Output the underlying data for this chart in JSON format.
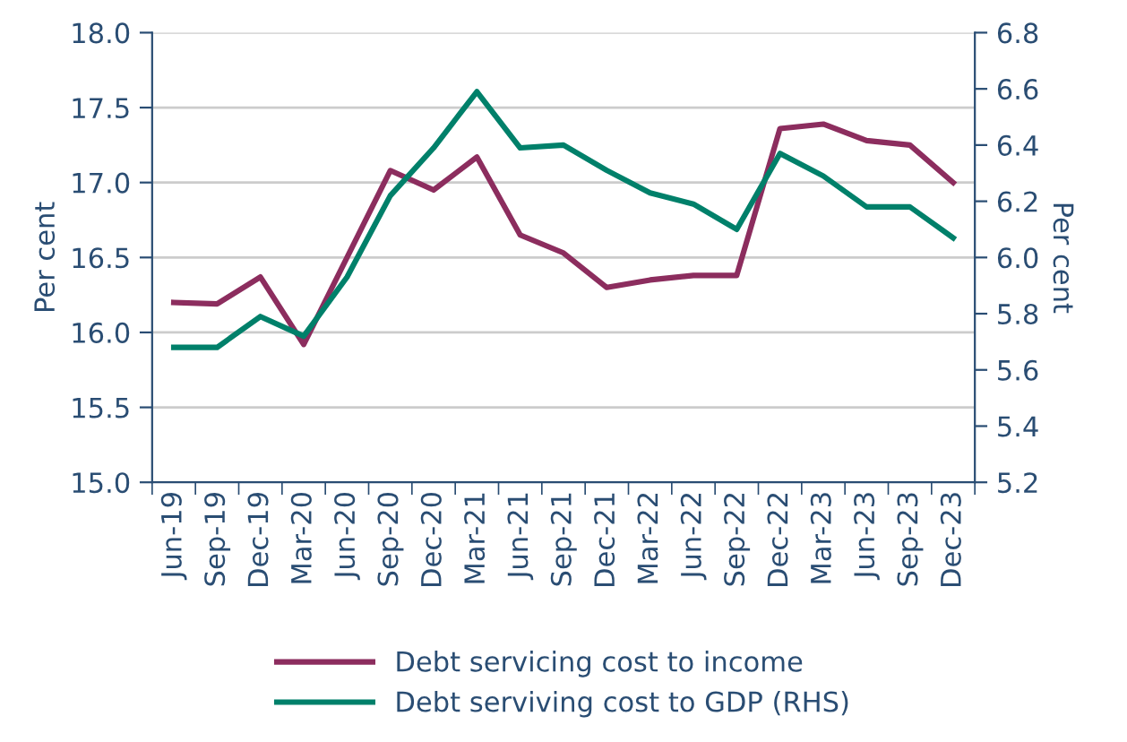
{
  "chart_data": {
    "type": "line",
    "categories": [
      "Jun-19",
      "Sep-19",
      "Dec-19",
      "Mar-20",
      "Jun-20",
      "Sep-20",
      "Dec-20",
      "Mar-21",
      "Jun-21",
      "Sep-21",
      "Dec-21",
      "Mar-22",
      "Jun-22",
      "Sep-22",
      "Dec-22",
      "Mar-23",
      "Jun-23",
      "Sep-23",
      "Dec-23"
    ],
    "series": [
      {
        "name": "Debt servicing cost to income",
        "color": "#8c2d5e",
        "values": [
          16.2,
          16.19,
          16.37,
          15.92,
          16.5,
          17.08,
          16.95,
          17.17,
          16.65,
          16.53,
          16.3,
          16.35,
          16.38,
          16.38,
          17.36,
          17.39,
          17.28,
          17.25,
          17.0
        ]
      },
      {
        "name": "Debt serviving cost to GDP (RHS)",
        "color": "#00806a",
        "axis": "y2",
        "values": [
          5.68,
          5.68,
          5.79,
          5.72,
          5.93,
          6.22,
          6.39,
          6.59,
          6.39,
          6.4,
          6.31,
          6.23,
          6.19,
          6.1,
          6.37,
          6.29,
          6.18,
          6.18,
          6.07
        ]
      }
    ],
    "ylabel": "Per cent",
    "y2label": "Per cent",
    "ylim": [
      15.0,
      18.0
    ],
    "yticks": [
      {
        "value": 15.0,
        "label": "15.0"
      },
      {
        "value": 15.5,
        "label": "15.5"
      },
      {
        "value": 16.0,
        "label": "16.0"
      },
      {
        "value": 16.5,
        "label": "16.5"
      },
      {
        "value": 17.0,
        "label": "17.0"
      },
      {
        "value": 17.5,
        "label": "17.5"
      },
      {
        "value": 18.0,
        "label": "18.0"
      }
    ],
    "y2lim": [
      5.2,
      6.8
    ],
    "y2ticks": [
      5.2,
      5.4,
      5.6,
      5.8,
      {
        "value": 6.0,
        "label": "6.0"
      },
      6.2,
      6.4,
      6.6,
      6.8
    ],
    "grid": "y",
    "legend": "bottom",
    "line_style": "solid"
  }
}
